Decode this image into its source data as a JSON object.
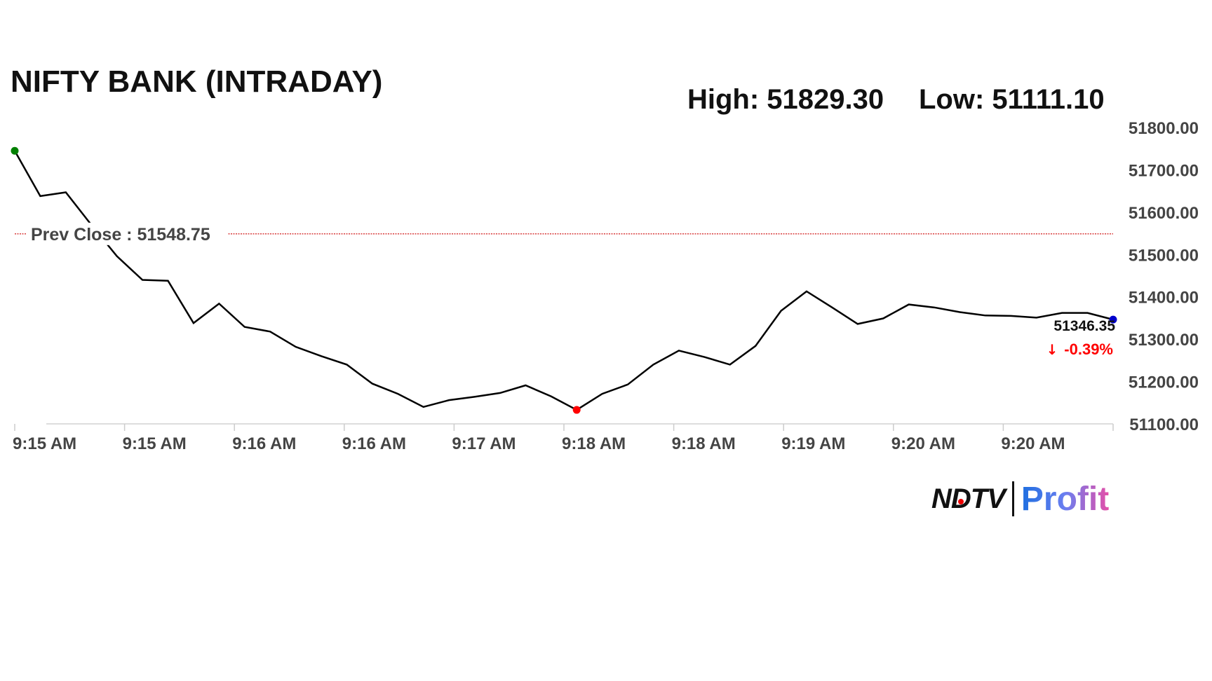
{
  "header": {
    "title": "NIFTY BANK (INTRADAY)",
    "high": "High: 51829.30",
    "low": "Low: 51111.10"
  },
  "logo": {
    "brand": "NDTV",
    "product": "Profit"
  },
  "chart_data": {
    "type": "line",
    "title": "NIFTY BANK (INTRADAY)",
    "x_tick_labels": [
      "9:15 AM",
      "9:15 AM",
      "9:16 AM",
      "9:16 AM",
      "9:17 AM",
      "9:18 AM",
      "9:18 AM",
      "9:19 AM",
      "9:20 AM",
      "9:20 AM"
    ],
    "y_tick_labels": [
      "51800.00",
      "51700.00",
      "51600.00",
      "51500.00",
      "51400.00",
      "51300.00",
      "51200.00",
      "51100.00"
    ],
    "ylim": [
      51100,
      51800
    ],
    "y_axis_position": "right",
    "grid": false,
    "values": [
      51745,
      51638,
      51647,
      51570,
      51496,
      51440,
      51438,
      51338,
      51384,
      51329,
      51318,
      51282,
      51260,
      51240,
      51195,
      51171,
      51140,
      51156,
      51164,
      51173,
      51191,
      51165,
      51133,
      51171,
      51193,
      51240,
      51273,
      51258,
      51240,
      51284,
      51367,
      51413,
      51375,
      51336,
      51349,
      51382,
      51375,
      51364,
      51356,
      51355,
      51351,
      51362,
      51362,
      51346.35
    ],
    "prev_close": {
      "label": "Prev Close : 51548.75",
      "value": 51548.75
    },
    "last": {
      "value_label": "51346.35",
      "change_label": "-0.39%",
      "direction": "down"
    },
    "colors": {
      "line": "#000000",
      "start_marker": "#008000",
      "low_marker": "#ff0000",
      "end_marker": "#0000cc",
      "prev_close": "#cc0000",
      "change": "#ff0000",
      "axis_text": "#444444"
    }
  }
}
